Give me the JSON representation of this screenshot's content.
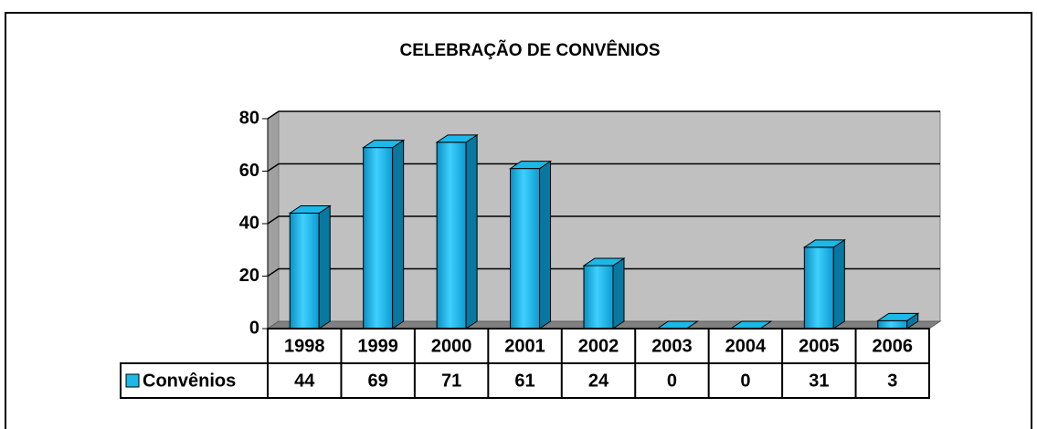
{
  "chart_data": {
    "type": "bar3d",
    "title": "CELEBRAÇÃO DE CONVÊNIOS",
    "categories": [
      "1998",
      "1999",
      "2000",
      "2001",
      "2002",
      "2003",
      "2004",
      "2005",
      "2006"
    ],
    "series": [
      {
        "name": "Convênios",
        "color": "#1cb8e8",
        "values": [
          44,
          69,
          71,
          61,
          24,
          0,
          0,
          31,
          3
        ]
      }
    ],
    "ylim": [
      0,
      80
    ],
    "yticks": [
      0,
      20,
      40,
      60,
      80
    ],
    "grid": true
  }
}
